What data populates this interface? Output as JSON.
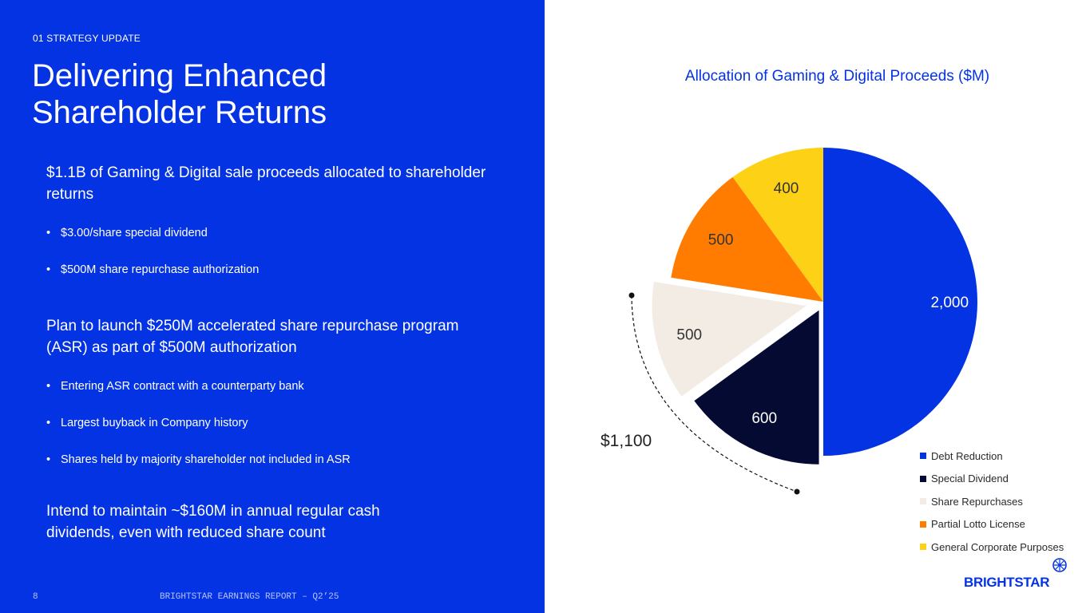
{
  "slide": {
    "kicker": "01 STRATEGY UPDATE",
    "title": "Delivering Enhanced Shareholder Returns",
    "sections": [
      {
        "lead": "$1.1B of Gaming & Digital sale proceeds allocated to shareholder returns",
        "bullets": [
          "$3.00/share special dividend",
          "$500M share repurchase authorization"
        ]
      },
      {
        "lead": "Plan to launch $250M accelerated share repurchase program (ASR) as part of $500M authorization",
        "bullets": [
          "Entering ASR contract with a counterparty bank",
          "Largest buyback in Company history",
          "Shares held by majority shareholder not included in ASR"
        ]
      },
      {
        "lead": "Intend to maintain ~$160M in annual regular cash dividends, even with reduced share count",
        "bullets": []
      }
    ],
    "bullet_char": "•",
    "page_number": "8",
    "footer": "BRIGHTSTAR EARNINGS REPORT – Q2’25",
    "logo_text": "BRIGHTSTAR"
  },
  "colors": {
    "brand": "#0433e3"
  },
  "chart_data": {
    "type": "pie",
    "title": "Allocation of Gaming & Digital Proceeds ($M)",
    "categories": [
      "Debt Reduction",
      "Special Dividend",
      "Share Repurchases",
      "Partial Lotto License",
      "General Corporate Purposes"
    ],
    "values": [
      2000,
      600,
      500,
      500,
      400
    ],
    "data_labels": [
      "2,000",
      "600",
      "500",
      "500",
      "400"
    ],
    "colors": [
      "#0433e3",
      "#050a33",
      "#f3ece5",
      "#ff7c00",
      "#fcd116"
    ],
    "label_colors": [
      "#ffffff",
      "#ffffff",
      "#333333",
      "#333333",
      "#333333"
    ],
    "exploded": [
      false,
      true,
      true,
      false,
      false
    ],
    "annotation": "$1,100",
    "legend_position": "bottom-right"
  }
}
